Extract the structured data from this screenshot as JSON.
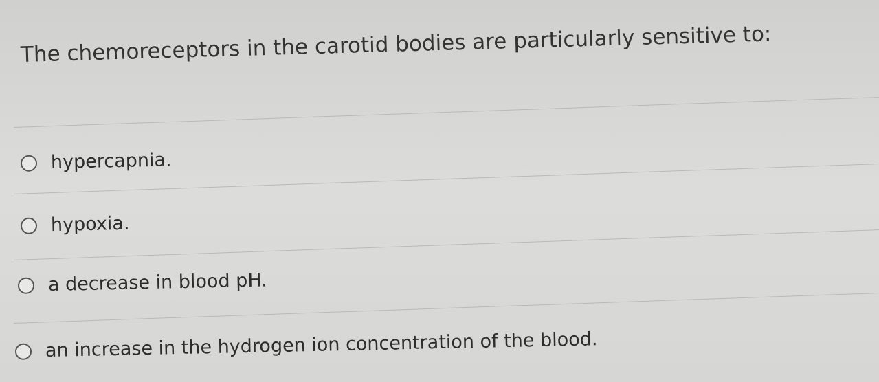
{
  "question": "The chemoreceptors in the carotid bodies are particularly sensitive to:",
  "options": [
    "hypercapnia.",
    "hypoxia.",
    "a decrease in blood pH.",
    "an increase in the hydrogen ion concentration of the blood."
  ]
}
